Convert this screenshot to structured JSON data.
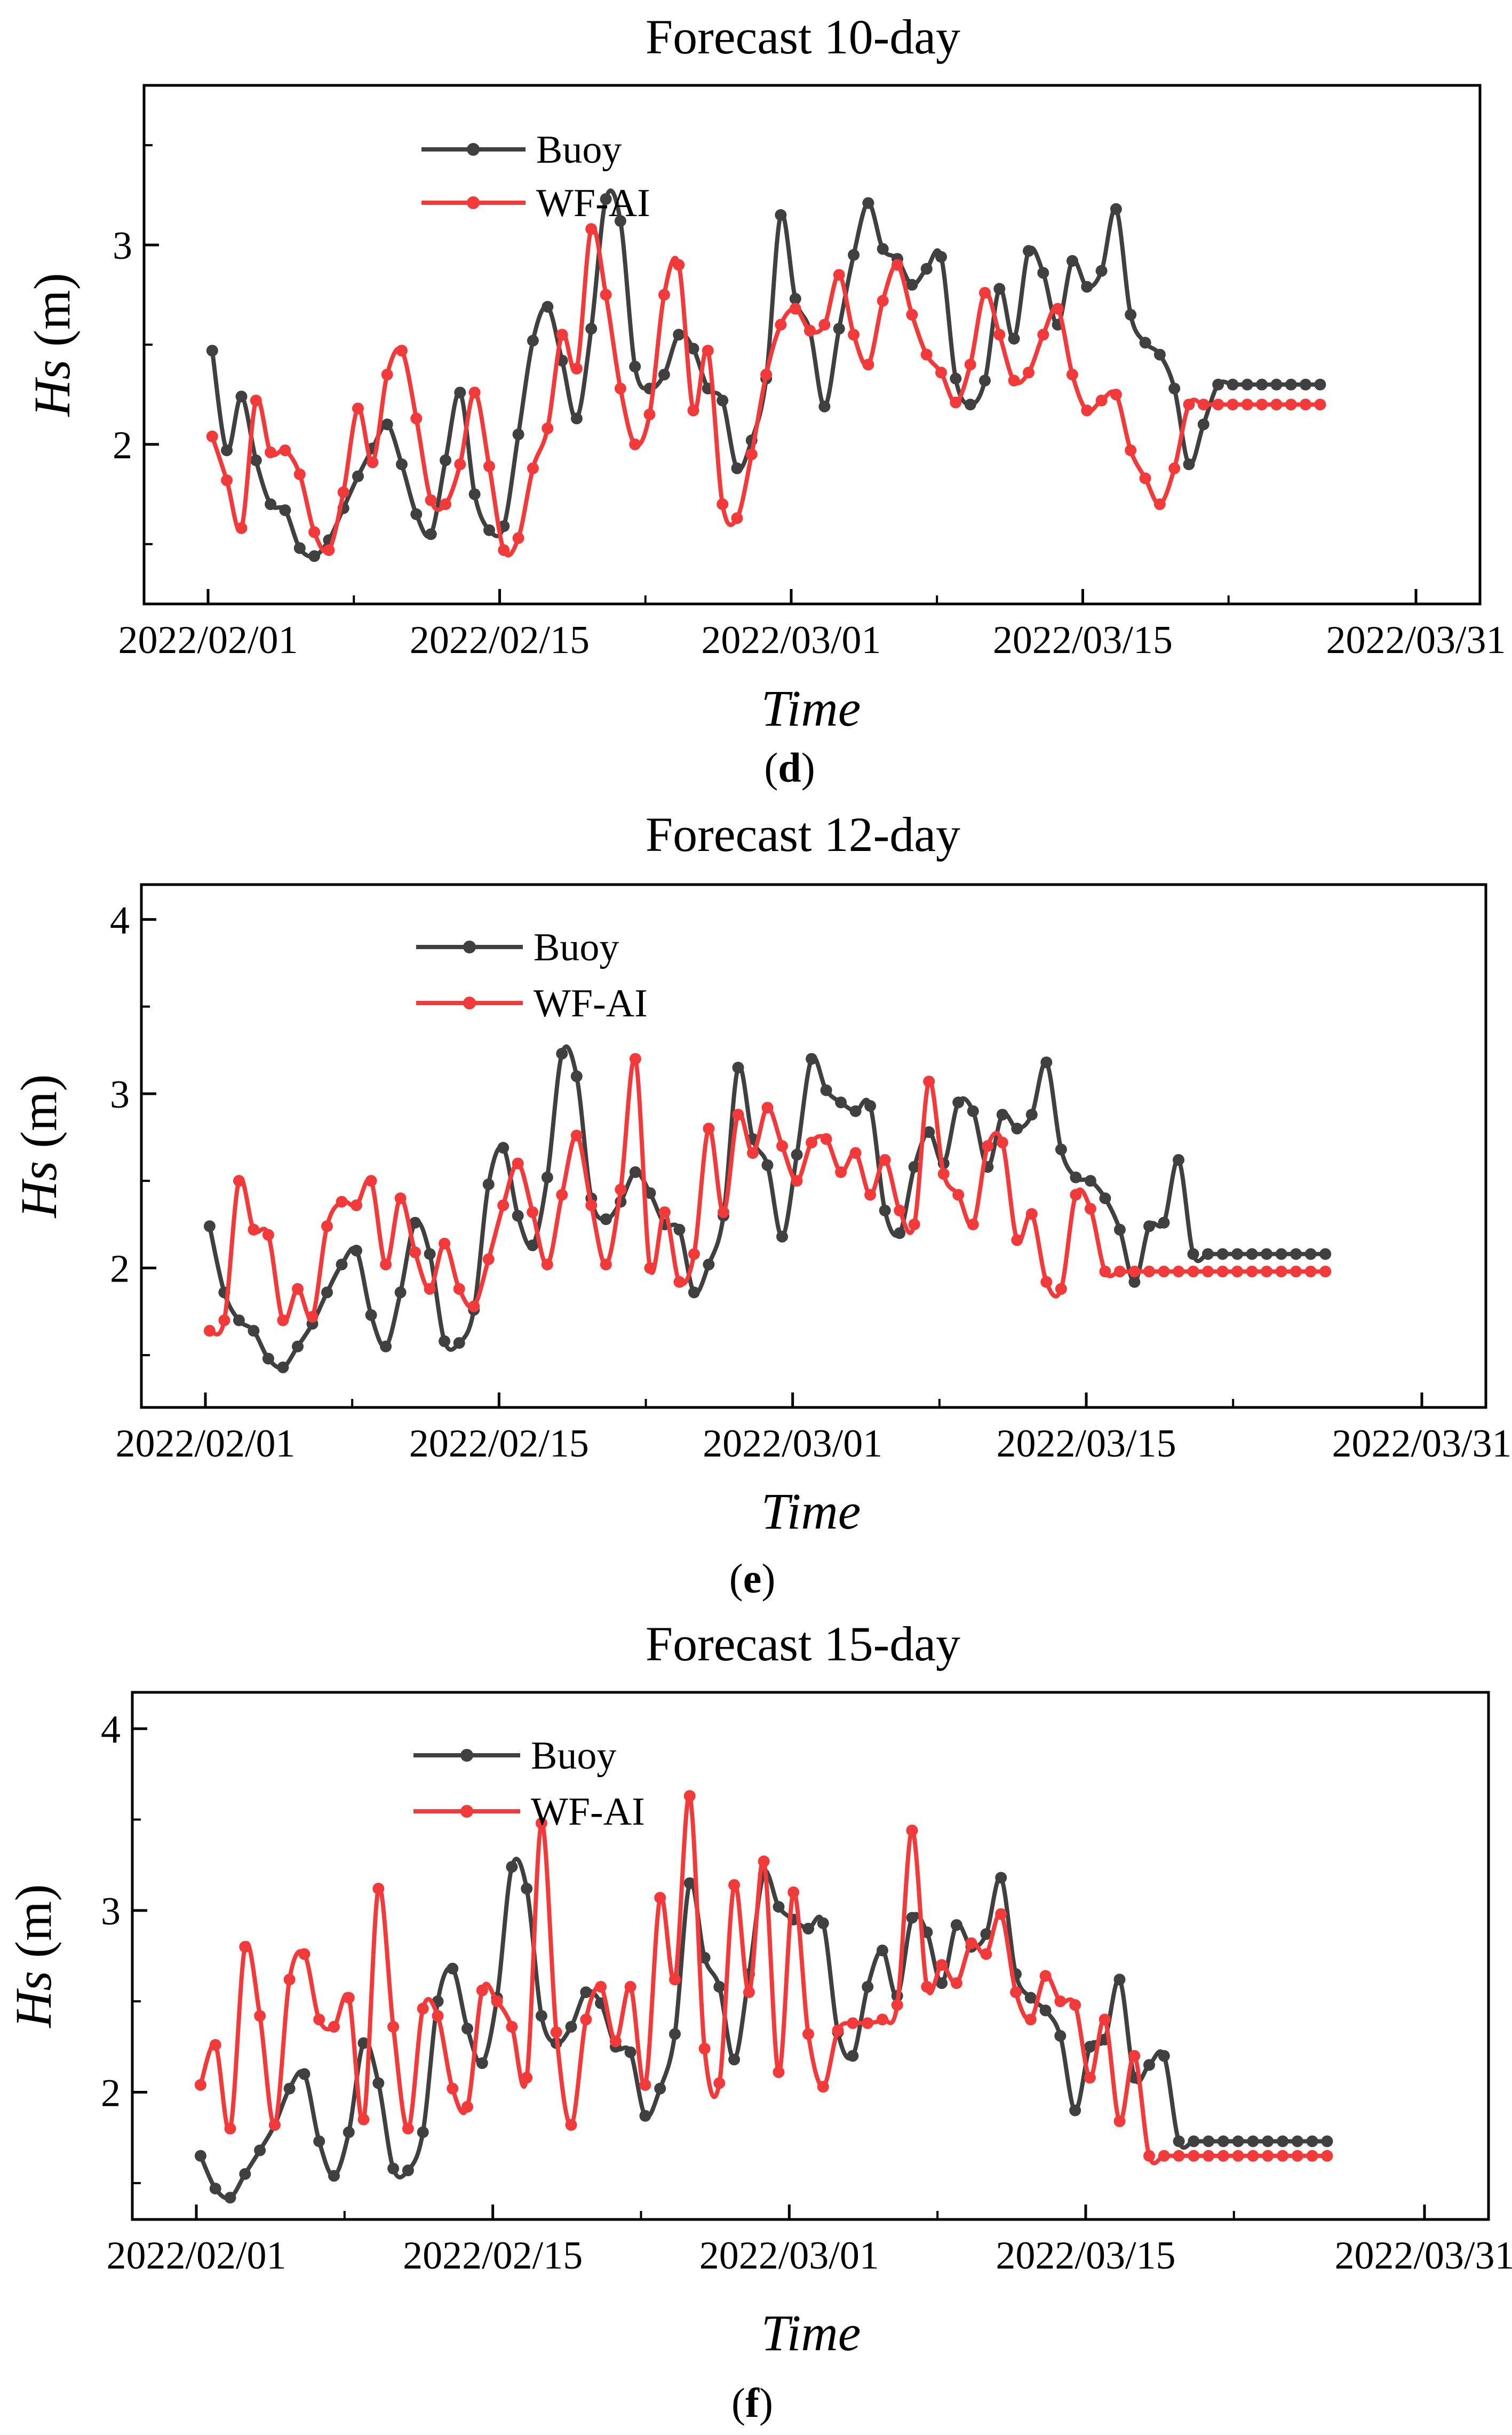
{
  "colors": {
    "buoy": "#404040",
    "wfai": "#f23a3a",
    "axis": "#000000"
  },
  "chart_data": [
    {
      "type": "line",
      "panel_label": "d",
      "title": "Forecast 10-day",
      "xlabel": "Time",
      "ylabel_var": "Hs",
      "ylabel_unit": " (m)",
      "xlim": [
        0,
        60
      ],
      "ylim": [
        1.2,
        3.8
      ],
      "yticks": [
        2,
        3
      ],
      "yticks_minor": [
        1.5,
        2.5,
        3.5
      ],
      "xticks": [
        {
          "value": 0,
          "label": "2022/02/01"
        },
        {
          "value": 14,
          "label": "2022/02/15"
        },
        {
          "value": 28,
          "label": "2022/03/01"
        },
        {
          "value": 42,
          "label": "2022/03/15"
        },
        {
          "value": 58,
          "label": "2022/03/31"
        }
      ],
      "legend": [
        "Buoy",
        "WF-AI"
      ],
      "series": [
        {
          "name": "Buoy",
          "x": [
            0.2,
            0.9,
            1.6,
            2.3,
            3.0,
            3.7,
            4.4,
            5.1,
            5.8,
            6.5,
            7.2,
            7.9,
            8.6,
            9.3,
            10.0,
            10.7,
            11.4,
            12.1,
            12.8,
            13.5,
            14.2,
            14.9,
            15.6,
            16.3,
            17.0,
            17.7,
            18.4,
            19.1,
            19.8,
            20.5,
            21.2,
            21.9,
            22.6,
            23.3,
            24.0,
            24.7,
            25.4,
            26.1,
            26.8,
            27.5,
            28.2,
            28.9,
            29.6,
            30.3,
            31.0,
            31.7,
            32.4,
            33.1,
            33.8,
            34.5,
            35.2,
            35.9,
            36.6,
            37.3,
            38.0,
            38.7,
            39.4,
            40.1,
            40.8,
            41.5,
            42.2,
            42.9,
            43.6,
            44.3,
            45.0,
            45.7,
            46.4,
            47.1,
            47.8,
            48.5,
            49.2,
            49.9,
            50.6,
            51.3,
            52.0,
            52.7,
            53.4
          ],
          "y": [
            2.47,
            1.97,
            2.24,
            1.92,
            1.7,
            1.67,
            1.48,
            1.44,
            1.52,
            1.68,
            1.84,
            1.98,
            2.1,
            1.9,
            1.65,
            1.55,
            1.92,
            2.26,
            1.75,
            1.57,
            1.59,
            2.05,
            2.52,
            2.69,
            2.42,
            2.13,
            2.58,
            3.23,
            3.12,
            2.39,
            2.28,
            2.35,
            2.55,
            2.48,
            2.28,
            2.22,
            1.88,
            2.02,
            2.33,
            3.15,
            2.73,
            2.57,
            2.19,
            2.58,
            2.95,
            3.21,
            2.98,
            2.93,
            2.8,
            2.88,
            2.94,
            2.33,
            2.2,
            2.32,
            2.78,
            2.53,
            2.97,
            2.86,
            2.6,
            2.92,
            2.79,
            2.87,
            3.18,
            2.65,
            2.51,
            2.45,
            2.28,
            1.9,
            2.1,
            2.3,
            2.3,
            2.3,
            2.3,
            2.3,
            2.3,
            2.3,
            2.3
          ]
        },
        {
          "name": "WF-AI",
          "x": [
            0.2,
            0.9,
            1.6,
            2.3,
            3.0,
            3.7,
            4.4,
            5.1,
            5.8,
            6.5,
            7.2,
            7.9,
            8.6,
            9.3,
            10.0,
            10.7,
            11.4,
            12.1,
            12.8,
            13.5,
            14.2,
            14.9,
            15.6,
            16.3,
            17.0,
            17.7,
            18.4,
            19.1,
            19.8,
            20.5,
            21.2,
            21.9,
            22.6,
            23.3,
            24.0,
            24.7,
            25.4,
            26.1,
            26.8,
            27.5,
            28.2,
            28.9,
            29.6,
            30.3,
            31.0,
            31.7,
            32.4,
            33.1,
            33.8,
            34.5,
            35.2,
            35.9,
            36.6,
            37.3,
            38.0,
            38.7,
            39.4,
            40.1,
            40.8,
            41.5,
            42.2,
            42.9,
            43.6,
            44.3,
            45.0,
            45.7,
            46.4,
            47.1,
            47.8,
            48.5,
            49.2,
            49.9,
            50.6,
            51.3,
            52.0,
            52.7,
            53.4
          ],
          "y": [
            2.04,
            1.82,
            1.58,
            2.22,
            1.96,
            1.97,
            1.85,
            1.56,
            1.47,
            1.76,
            2.18,
            1.91,
            2.35,
            2.47,
            2.13,
            1.72,
            1.7,
            1.9,
            2.26,
            1.89,
            1.47,
            1.53,
            1.88,
            2.08,
            2.55,
            2.38,
            3.08,
            2.75,
            2.28,
            2.0,
            2.15,
            2.75,
            2.9,
            2.17,
            2.47,
            1.7,
            1.63,
            1.95,
            2.35,
            2.6,
            2.68,
            2.57,
            2.6,
            2.85,
            2.55,
            2.4,
            2.72,
            2.9,
            2.65,
            2.45,
            2.36,
            2.21,
            2.4,
            2.76,
            2.55,
            2.32,
            2.36,
            2.55,
            2.68,
            2.35,
            2.17,
            2.22,
            2.25,
            1.97,
            1.83,
            1.7,
            1.88,
            2.2,
            2.2,
            2.2,
            2.2,
            2.2,
            2.2,
            2.2,
            2.2,
            2.2,
            2.2
          ]
        }
      ]
    },
    {
      "type": "line",
      "panel_label": "e",
      "title": "Forecast 12-day",
      "xlabel": "Time",
      "ylabel_var": "Hs",
      "ylabel_unit": " (m)",
      "xlim": [
        0,
        60
      ],
      "ylim": [
        1.2,
        4.2
      ],
      "yticks": [
        2,
        3,
        4
      ],
      "yticks_minor": [
        1.5,
        2.5,
        3.5
      ],
      "xticks": [
        {
          "value": 0,
          "label": "2022/02/01"
        },
        {
          "value": 14,
          "label": "2022/02/15"
        },
        {
          "value": 28,
          "label": "2022/03/01"
        },
        {
          "value": 42,
          "label": "2022/03/15"
        },
        {
          "value": 58,
          "label": "2022/03/31"
        }
      ],
      "legend": [
        "Buoy",
        "WF-AI"
      ],
      "series": [
        {
          "name": "Buoy",
          "x": [
            0.2,
            0.9,
            1.6,
            2.3,
            3.0,
            3.7,
            4.4,
            5.1,
            5.8,
            6.5,
            7.2,
            7.9,
            8.6,
            9.3,
            10.0,
            10.7,
            11.4,
            12.1,
            12.8,
            13.5,
            14.2,
            14.9,
            15.6,
            16.3,
            17.0,
            17.7,
            18.4,
            19.1,
            19.8,
            20.5,
            21.2,
            21.9,
            22.6,
            23.3,
            24.0,
            24.7,
            25.4,
            26.1,
            26.8,
            27.5,
            28.2,
            28.9,
            29.6,
            30.3,
            31.0,
            31.7,
            32.4,
            33.1,
            33.8,
            34.5,
            35.2,
            35.9,
            36.6,
            37.3,
            38.0,
            38.7,
            39.4,
            40.1,
            40.8,
            41.5,
            42.2,
            42.9,
            43.6,
            44.3,
            45.0,
            45.7,
            46.4,
            47.1,
            47.8,
            48.5,
            49.2,
            49.9,
            50.6,
            51.3,
            52.0,
            52.7,
            53.4
          ],
          "y": [
            2.24,
            1.86,
            1.7,
            1.64,
            1.48,
            1.43,
            1.55,
            1.68,
            1.86,
            2.02,
            2.1,
            1.73,
            1.55,
            1.86,
            2.26,
            2.08,
            1.58,
            1.57,
            1.76,
            2.48,
            2.69,
            2.3,
            2.13,
            2.52,
            3.23,
            3.1,
            2.4,
            2.28,
            2.38,
            2.55,
            2.43,
            2.25,
            2.22,
            1.86,
            2.02,
            2.3,
            3.15,
            2.74,
            2.59,
            2.18,
            2.65,
            3.2,
            3.02,
            2.95,
            2.9,
            2.93,
            2.33,
            2.2,
            2.58,
            2.78,
            2.6,
            2.95,
            2.9,
            2.58,
            2.88,
            2.8,
            2.88,
            3.18,
            2.68,
            2.52,
            2.5,
            2.4,
            2.22,
            1.92,
            2.24,
            2.26,
            2.62,
            2.08,
            2.08,
            2.08,
            2.08,
            2.08,
            2.08,
            2.08,
            2.08,
            2.08,
            2.08
          ]
        },
        {
          "name": "WF-AI",
          "x": [
            0.2,
            0.9,
            1.6,
            2.3,
            3.0,
            3.7,
            4.4,
            5.1,
            5.8,
            6.5,
            7.2,
            7.9,
            8.6,
            9.3,
            10.0,
            10.7,
            11.4,
            12.1,
            12.8,
            13.5,
            14.2,
            14.9,
            15.6,
            16.3,
            17.0,
            17.7,
            18.4,
            19.1,
            19.8,
            20.5,
            21.2,
            21.9,
            22.6,
            23.3,
            24.0,
            24.7,
            25.4,
            26.1,
            26.8,
            27.5,
            28.2,
            28.9,
            29.6,
            30.3,
            31.0,
            31.7,
            32.4,
            33.1,
            33.8,
            34.5,
            35.2,
            35.9,
            36.6,
            37.3,
            38.0,
            38.7,
            39.4,
            40.1,
            40.8,
            41.5,
            42.2,
            42.9,
            43.6,
            44.3,
            45.0,
            45.7,
            46.4,
            47.1,
            47.8,
            48.5,
            49.2,
            49.9,
            50.6,
            51.3,
            52.0,
            52.7,
            53.4
          ],
          "y": [
            1.64,
            1.7,
            2.5,
            2.22,
            2.19,
            1.7,
            1.88,
            1.72,
            2.24,
            2.38,
            2.36,
            2.5,
            2.02,
            2.4,
            2.09,
            1.88,
            2.14,
            1.88,
            1.78,
            2.05,
            2.36,
            2.6,
            2.32,
            2.02,
            2.42,
            2.76,
            2.36,
            2.02,
            2.45,
            3.2,
            2.0,
            2.32,
            1.92,
            2.08,
            2.8,
            2.32,
            2.88,
            2.66,
            2.92,
            2.7,
            2.5,
            2.72,
            2.74,
            2.55,
            2.66,
            2.42,
            2.62,
            2.33,
            2.25,
            3.07,
            2.54,
            2.42,
            2.25,
            2.7,
            2.72,
            2.16,
            2.31,
            1.92,
            1.88,
            2.42,
            2.34,
            1.98,
            1.98,
            1.98,
            1.98,
            1.98,
            1.98,
            1.98,
            1.98,
            1.98,
            1.98,
            1.98,
            1.98,
            1.98,
            1.98,
            1.98,
            1.98
          ]
        }
      ]
    },
    {
      "type": "line",
      "panel_label": "f",
      "title": "Forecast 15-day",
      "xlabel": "Time",
      "ylabel_var": "Hs",
      "ylabel_unit": " (m)",
      "xlim": [
        0,
        60
      ],
      "ylim": [
        1.3,
        4.2
      ],
      "yticks": [
        2,
        3,
        4
      ],
      "yticks_minor": [
        1.5,
        2.5,
        3.5
      ],
      "xticks": [
        {
          "value": 0,
          "label": "2022/02/01"
        },
        {
          "value": 14,
          "label": "2022/02/15"
        },
        {
          "value": 28,
          "label": "2022/03/01"
        },
        {
          "value": 42,
          "label": "2022/03/15"
        },
        {
          "value": 58,
          "label": "2022/03/31"
        }
      ],
      "legend": [
        "Buoy",
        "WF-AI"
      ],
      "series": [
        {
          "name": "Buoy",
          "x": [
            0.2,
            0.9,
            1.6,
            2.3,
            3.0,
            3.7,
            4.4,
            5.1,
            5.8,
            6.5,
            7.2,
            7.9,
            8.6,
            9.3,
            10.0,
            10.7,
            11.4,
            12.1,
            12.8,
            13.5,
            14.2,
            14.9,
            15.6,
            16.3,
            17.0,
            17.7,
            18.4,
            19.1,
            19.8,
            20.5,
            21.2,
            21.9,
            22.6,
            23.3,
            24.0,
            24.7,
            25.4,
            26.1,
            26.8,
            27.5,
            28.2,
            28.9,
            29.6,
            30.3,
            31.0,
            31.7,
            32.4,
            33.1,
            33.8,
            34.5,
            35.2,
            35.9,
            36.6,
            37.3,
            38.0,
            38.7,
            39.4,
            40.1,
            40.8,
            41.5,
            42.2,
            42.9,
            43.6,
            44.3,
            45.0,
            45.7,
            46.4,
            47.1,
            47.8,
            48.5,
            49.2,
            49.9,
            50.6,
            51.3,
            52.0,
            52.7,
            53.4
          ],
          "y": [
            1.65,
            1.47,
            1.42,
            1.55,
            1.68,
            1.82,
            2.02,
            2.1,
            1.73,
            1.54,
            1.78,
            2.27,
            2.05,
            1.58,
            1.57,
            1.78,
            2.5,
            2.68,
            2.35,
            2.16,
            2.52,
            3.24,
            3.12,
            2.42,
            2.27,
            2.36,
            2.55,
            2.49,
            2.25,
            2.22,
            1.87,
            2.02,
            2.32,
            3.15,
            2.74,
            2.58,
            2.18,
            2.65,
            3.2,
            3.02,
            2.95,
            2.9,
            2.93,
            2.33,
            2.2,
            2.58,
            2.78,
            2.53,
            2.96,
            2.88,
            2.6,
            2.92,
            2.8,
            2.87,
            3.18,
            2.65,
            2.52,
            2.45,
            2.31,
            1.9,
            2.25,
            2.29,
            2.62,
            2.08,
            2.15,
            2.2,
            1.73,
            1.73,
            1.73,
            1.73,
            1.73,
            1.73,
            1.73,
            1.73,
            1.73,
            1.73,
            1.73
          ]
        },
        {
          "name": "WF-AI",
          "x": [
            0.2,
            0.9,
            1.6,
            2.3,
            3.0,
            3.7,
            4.4,
            5.1,
            5.8,
            6.5,
            7.2,
            7.9,
            8.6,
            9.3,
            10.0,
            10.7,
            11.4,
            12.1,
            12.8,
            13.5,
            14.2,
            14.9,
            15.6,
            16.3,
            17.0,
            17.7,
            18.4,
            19.1,
            19.8,
            20.5,
            21.2,
            21.9,
            22.6,
            23.3,
            24.0,
            24.7,
            25.4,
            26.1,
            26.8,
            27.5,
            28.2,
            28.9,
            29.6,
            30.3,
            31.0,
            31.7,
            32.4,
            33.1,
            33.8,
            34.5,
            35.2,
            35.9,
            36.6,
            37.3,
            38.0,
            38.7,
            39.4,
            40.1,
            40.8,
            41.5,
            42.2,
            42.9,
            43.6,
            44.3,
            45.0,
            45.7,
            46.4,
            47.1,
            47.8,
            48.5,
            49.2,
            49.9,
            50.6,
            51.3,
            52.0,
            52.7,
            53.4
          ],
          "y": [
            2.04,
            2.26,
            1.8,
            2.8,
            2.42,
            1.82,
            2.62,
            2.76,
            2.4,
            2.36,
            2.52,
            1.85,
            3.12,
            2.36,
            1.8,
            2.46,
            2.42,
            2.02,
            1.92,
            2.56,
            2.5,
            2.36,
            2.08,
            3.48,
            2.33,
            1.82,
            2.4,
            2.58,
            2.28,
            2.58,
            2.04,
            3.07,
            2.62,
            3.63,
            2.24,
            2.05,
            3.14,
            2.55,
            3.27,
            2.11,
            3.1,
            2.32,
            2.03,
            2.34,
            2.38,
            2.38,
            2.4,
            2.48,
            3.44,
            2.58,
            2.7,
            2.6,
            2.82,
            2.76,
            2.98,
            2.55,
            2.4,
            2.64,
            2.5,
            2.48,
            2.08,
            2.4,
            1.84,
            2.2,
            1.65,
            1.65,
            1.65,
            1.65,
            1.65,
            1.65,
            1.65,
            1.65,
            1.65,
            1.65,
            1.65,
            1.65,
            1.65
          ]
        }
      ]
    }
  ]
}
